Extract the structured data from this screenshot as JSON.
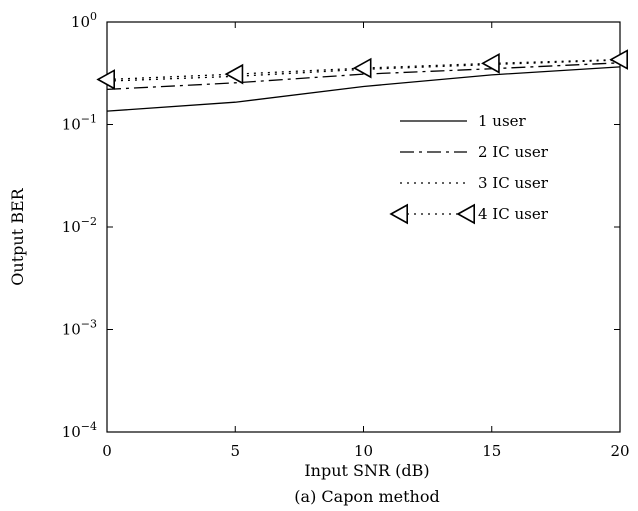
{
  "chart_data": {
    "type": "line",
    "title": "",
    "caption": "(a) Capon method",
    "xlabel": "Input SNR (dB)",
    "ylabel": "Output BER",
    "xlim": [
      0,
      20
    ],
    "ylim": [
      0.0001,
      1
    ],
    "yscale": "log",
    "grid": false,
    "legend_placement": "upper-right",
    "x_ticks": [
      {
        "value": 0,
        "label": "0"
      },
      {
        "value": 5,
        "label": "5"
      },
      {
        "value": 10,
        "label": "10"
      },
      {
        "value": 15,
        "label": "15"
      },
      {
        "value": 20,
        "label": "20"
      }
    ],
    "y_ticks": [
      {
        "value": 1,
        "base": "10",
        "exp": "0"
      },
      {
        "value": 0.1,
        "base": "10",
        "exp": "−1"
      },
      {
        "value": 0.01,
        "base": "10",
        "exp": "−2"
      },
      {
        "value": 0.001,
        "base": "10",
        "exp": "−3"
      },
      {
        "value": 0.0001,
        "base": "10",
        "exp": "−4"
      }
    ],
    "x": [
      0,
      5,
      10,
      15,
      20
    ],
    "series": [
      {
        "name": "1 user",
        "style": "solid",
        "marker": "none",
        "values": [
          0.135,
          0.165,
          0.235,
          0.305,
          0.365
        ]
      },
      {
        "name": "2 IC user",
        "style": "dashdot",
        "marker": "none",
        "values": [
          0.22,
          0.255,
          0.31,
          0.35,
          0.4
        ]
      },
      {
        "name": "3 IC user",
        "style": "dotted",
        "marker": "none",
        "values": [
          0.265,
          0.295,
          0.345,
          0.385,
          0.425
        ]
      },
      {
        "name": "4 IC user",
        "style": "dotted",
        "marker": "triangle-left",
        "values": [
          0.275,
          0.31,
          0.355,
          0.395,
          0.43
        ]
      }
    ]
  }
}
